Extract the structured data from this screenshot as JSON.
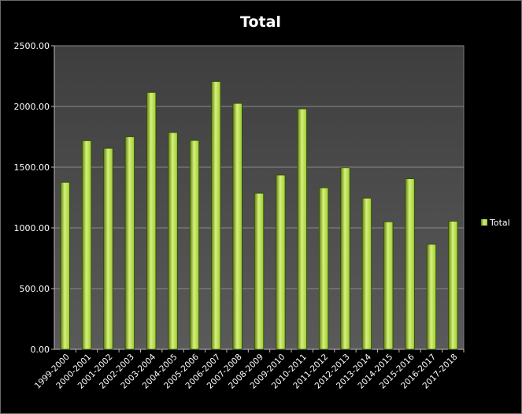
{
  "chart_data": {
    "type": "bar",
    "title": "Total",
    "categories": [
      "1999-2000",
      "2000-2001",
      "2001-2002",
      "2002-2003",
      "2003-2004",
      "2004-2005",
      "2005-2006",
      "2006-2007",
      "2007-2008",
      "2008-2009",
      "2009-2010",
      "2010-2011",
      "2011-2012",
      "2012-2013",
      "2013-2014",
      "2014-2015",
      "2015-2016",
      "2016-2017",
      "2017-2018"
    ],
    "series": [
      {
        "name": "Total",
        "values": [
          1375,
          1718,
          1655,
          1750,
          2115,
          1785,
          1720,
          2205,
          2025,
          1285,
          1435,
          1980,
          1330,
          1495,
          1245,
          1050,
          1405,
          865,
          1055
        ]
      }
    ],
    "ylim": [
      0,
      2500
    ],
    "yticks": [
      "0.00",
      "500.00",
      "1000.00",
      "1500.00",
      "2000.00",
      "2500.00"
    ],
    "grid": true,
    "legend_position": "right",
    "colors": {
      "bar": "#9acd32",
      "bar_light": "#d8f07a",
      "bar_dark": "#5d7f12",
      "plot_bg": "#4a4a4a",
      "grid": "#8a8a8a",
      "text": "#ffffff"
    }
  }
}
